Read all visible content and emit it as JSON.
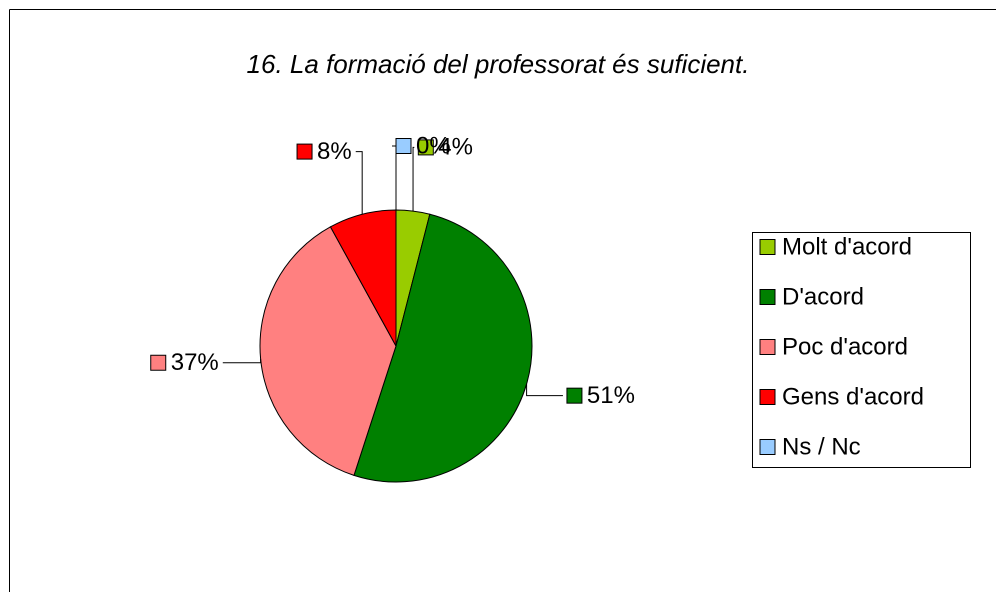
{
  "chart_data": {
    "type": "pie",
    "title": "16. La formació del professorat és suficient.",
    "categories": [
      "Molt d'acord",
      "D'acord",
      "Poc d'acord",
      "Gens d'acord",
      "Ns / Nc"
    ],
    "values": [
      4,
      51,
      37,
      8,
      0
    ],
    "value_labels": [
      "4%",
      "51%",
      "37%",
      "8%",
      "0%"
    ],
    "colors": [
      "#99cc00",
      "#008000",
      "#ff8080",
      "#ff0000",
      "#99ccff"
    ],
    "legend": "right"
  }
}
